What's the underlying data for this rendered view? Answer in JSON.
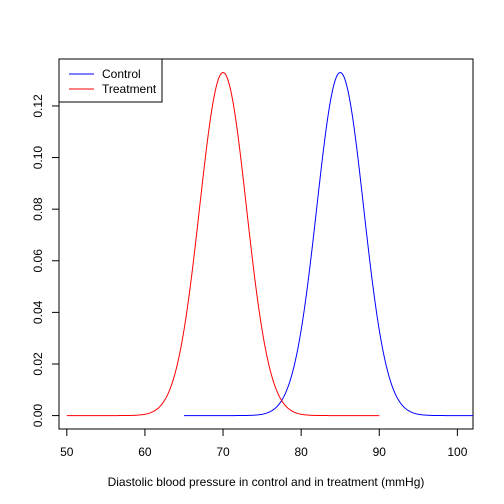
{
  "chart_data": {
    "type": "line",
    "title": "",
    "xlabel": "Diastolic blood pressure in control and in treatment (mmHg)",
    "ylabel": "",
    "xlim": [
      49,
      102
    ],
    "ylim": [
      -0.0052,
      0.1382
    ],
    "x_ticks": [
      50,
      60,
      70,
      80,
      90,
      100
    ],
    "y_ticks": [
      0.0,
      0.02,
      0.04,
      0.06,
      0.08,
      0.1,
      0.12
    ],
    "x_tick_labels": [
      "50",
      "60",
      "70",
      "80",
      "90",
      "100"
    ],
    "y_tick_labels": [
      "0.00",
      "0.02",
      "0.04",
      "0.06",
      "0.08",
      "0.10",
      "0.12"
    ],
    "grid": false,
    "legend_position": "top-left",
    "series": [
      {
        "name": "Control",
        "color": "#0000ff",
        "distribution": "normal",
        "mean": 85,
        "sd": 3,
        "x_range": [
          65,
          105
        ]
      },
      {
        "name": "Treatment",
        "color": "#ff0000",
        "distribution": "normal",
        "mean": 70,
        "sd": 3,
        "x_range": [
          50,
          90
        ]
      }
    ]
  }
}
